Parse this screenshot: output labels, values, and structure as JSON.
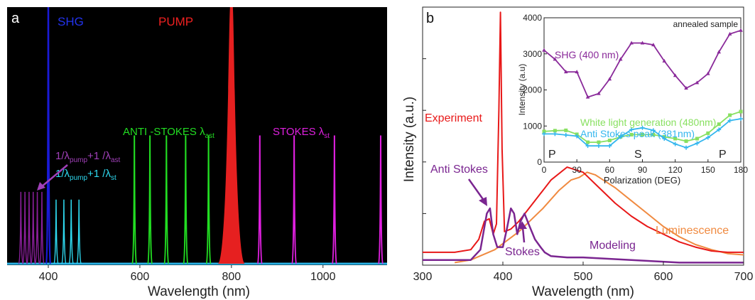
{
  "chart_data": [
    {
      "type": "line",
      "panel_label": "a",
      "xlabel": "Wavelength (nm)",
      "xlim": [
        310,
        1140
      ],
      "ylim": [
        0,
        1
      ],
      "xticks": [
        400,
        600,
        800,
        1000
      ],
      "background": "#000000",
      "annotations": {
        "shg": "SHG",
        "pump": "PUMP",
        "anti_stokes_base": "ANTI -STOKES λ",
        "anti_stokes_sub": "ast",
        "stokes_base": "STOKES λ",
        "stokes_sub": "st",
        "sum_ast_a": "1/λ",
        "sum_ast_b": "pump",
        "sum_ast_c": "+1 /λ",
        "sum_ast_d": "ast",
        "sum_st_a": "1/λ",
        "sum_st_b": "pump",
        "sum_st_c": "+1 /λ",
        "sum_st_d": "st"
      },
      "series": [
        {
          "color": "#8a1f9a",
          "peaks": [
            [
              340,
              0.28
            ],
            [
              349,
              0.28
            ],
            [
              358,
              0.28
            ],
            [
              367,
              0.28
            ],
            [
              376,
              0.28
            ],
            [
              386,
              0.28
            ]
          ],
          "width": 1.5
        },
        {
          "color": "#2ed8ee",
          "peaks": [
            [
              417,
              0.25
            ],
            [
              434,
              0.25
            ],
            [
              450,
              0.25
            ],
            [
              467,
              0.25
            ]
          ],
          "width": 1.5
        },
        {
          "color": "#1a1ad6",
          "peaks": [
            [
              400,
              1.0
            ]
          ],
          "width": 2.5
        },
        {
          "color": "#22dd22",
          "peaks": [
            [
              588,
              0.5
            ],
            [
              622,
              0.5
            ],
            [
              658,
              0.5
            ],
            [
              700,
              0.5
            ],
            [
              750,
              0.5
            ]
          ],
          "width": 2
        },
        {
          "color": "#e62020",
          "peaks": [
            [
              800,
              1.0
            ]
          ],
          "width": 12
        },
        {
          "color": "#e020e0",
          "peaks": [
            [
              862,
              0.5
            ],
            [
              937,
              0.5
            ],
            [
              1025,
              0.5
            ],
            [
              1126,
              0.5
            ]
          ],
          "width": 2
        }
      ]
    },
    {
      "type": "line",
      "panel_label": "b",
      "xlabel": "Wavelength (nm)",
      "ylabel": "Intensity (a.u.)",
      "xlim": [
        300,
        700
      ],
      "ylim": [
        0,
        1
      ],
      "xticks": [
        300,
        400,
        500,
        600,
        700
      ],
      "annotations": {
        "experiment": "Experiment",
        "anti_stokes": "Anti Stokes",
        "stokes": "Stokes",
        "modeling": "Modeling",
        "luminescence": "Luminescence"
      },
      "series": [
        {
          "name": "Experiment",
          "color": "#e81818",
          "points": [
            [
              300,
              0.05
            ],
            [
              340,
              0.05
            ],
            [
              360,
              0.06
            ],
            [
              370,
              0.1
            ],
            [
              377,
              0.17
            ],
            [
              383,
              0.18
            ],
            [
              388,
              0.12
            ],
            [
              392,
              0.16
            ],
            [
              395,
              0.6
            ],
            [
              397,
              0.98
            ],
            [
              399,
              0.45
            ],
            [
              402,
              0.13
            ],
            [
              410,
              0.14
            ],
            [
              420,
              0.17
            ],
            [
              440,
              0.25
            ],
            [
              460,
              0.33
            ],
            [
              480,
              0.38
            ],
            [
              500,
              0.36
            ],
            [
              520,
              0.3
            ],
            [
              540,
              0.24
            ],
            [
              560,
              0.19
            ],
            [
              580,
              0.15
            ],
            [
              600,
              0.12
            ],
            [
              620,
              0.09
            ],
            [
              640,
              0.07
            ],
            [
              660,
              0.055
            ],
            [
              680,
              0.05
            ],
            [
              700,
              0.05
            ]
          ]
        },
        {
          "name": "Modeling",
          "color": "#7a2590",
          "points": [
            [
              300,
              0.02
            ],
            [
              360,
              0.02
            ],
            [
              372,
              0.06
            ],
            [
              380,
              0.2
            ],
            [
              384,
              0.22
            ],
            [
              388,
              0.12
            ],
            [
              393,
              0.07
            ],
            [
              400,
              0.07
            ],
            [
              405,
              0.14
            ],
            [
              410,
              0.22
            ],
            [
              414,
              0.2
            ],
            [
              418,
              0.12
            ],
            [
              422,
              0.17
            ],
            [
              427,
              0.2
            ],
            [
              432,
              0.16
            ],
            [
              440,
              0.1
            ],
            [
              447,
              0.07
            ],
            [
              452,
              0.05
            ],
            [
              460,
              0.035
            ],
            [
              480,
              0.03
            ],
            [
              500,
              0.03
            ],
            [
              560,
              0.02
            ],
            [
              620,
              0.01
            ],
            [
              700,
              0.01
            ]
          ]
        },
        {
          "name": "Luminescence",
          "color": "#f08a40",
          "points": [
            [
              340,
              0.01
            ],
            [
              360,
              0.02
            ],
            [
              390,
              0.06
            ],
            [
              420,
              0.13
            ],
            [
              450,
              0.22
            ],
            [
              470,
              0.29
            ],
            [
              485,
              0.33
            ],
            [
              495,
              0.34
            ],
            [
              505,
              0.36
            ],
            [
              515,
              0.35
            ],
            [
              525,
              0.33
            ],
            [
              540,
              0.3
            ],
            [
              560,
              0.25
            ],
            [
              580,
              0.2
            ],
            [
              600,
              0.15
            ],
            [
              620,
              0.11
            ],
            [
              640,
              0.08
            ],
            [
              660,
              0.06
            ],
            [
              680,
              0.045
            ],
            [
              700,
              0.04
            ]
          ]
        }
      ]
    },
    {
      "type": "line",
      "title": "annealed sample",
      "xlabel": "Polarization (DEG)",
      "ylabel": "Intensity (a.u)",
      "xlim": [
        0,
        180
      ],
      "ylim": [
        0,
        4000
      ],
      "xticks": [
        0,
        30,
        60,
        90,
        120,
        150,
        180
      ],
      "yticks": [
        0,
        1000,
        2000,
        3000,
        4000
      ],
      "axis_letters": [
        "P",
        "S",
        "P"
      ],
      "series": [
        {
          "name": "SHG (400 nm)",
          "color": "#8a2a9a",
          "x": [
            0,
            10,
            20,
            30,
            40,
            50,
            60,
            70,
            80,
            90,
            100,
            110,
            120,
            130,
            140,
            150,
            160,
            170,
            180
          ],
          "values": [
            3100,
            2850,
            2500,
            2500,
            1800,
            1900,
            2300,
            2850,
            3300,
            3300,
            3250,
            2800,
            2400,
            2050,
            2200,
            2450,
            3050,
            3550,
            3650
          ]
        },
        {
          "name": "White light generation (480nm)",
          "color": "#88e060",
          "x": [
            0,
            10,
            20,
            30,
            40,
            50,
            60,
            70,
            80,
            90,
            100,
            110,
            120,
            130,
            140,
            150,
            160,
            170,
            180
          ],
          "values": [
            850,
            870,
            880,
            770,
            550,
            550,
            600,
            700,
            760,
            760,
            760,
            700,
            650,
            580,
            650,
            800,
            1050,
            1300,
            1400
          ]
        },
        {
          "name": "Anti Stokes peak (381nm)",
          "color": "#33b6ee",
          "x": [
            0,
            10,
            20,
            30,
            40,
            50,
            60,
            70,
            80,
            90,
            100,
            110,
            120,
            130,
            140,
            150,
            160,
            170,
            180
          ],
          "values": [
            780,
            780,
            750,
            720,
            450,
            450,
            450,
            700,
            900,
            950,
            880,
            650,
            500,
            400,
            520,
            680,
            900,
            1150,
            1200
          ]
        }
      ]
    }
  ]
}
